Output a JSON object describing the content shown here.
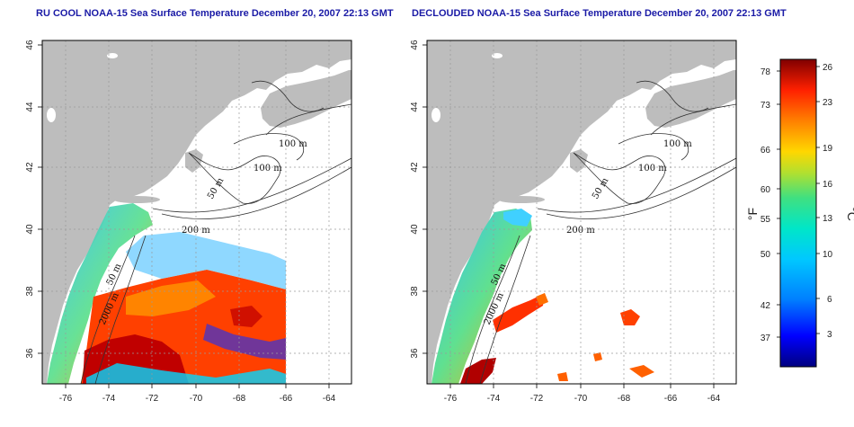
{
  "titles": {
    "left": "RU COOL NOAA-15 Sea Surface Temperature December 20, 2007 22:13 GMT",
    "right": "DECLOUDED NOAA-15 Sea Surface Temperature December 20, 2007 22:13 GMT"
  },
  "axes": {
    "lon_ticks": [
      "-76",
      "-74",
      "-72",
      "-70",
      "-68",
      "-66",
      "-64"
    ],
    "lat_ticks": [
      "46",
      "44",
      "42",
      "40",
      "38",
      "36"
    ]
  },
  "contour_labels": {
    "left": [
      "100 m",
      "100 m",
      "50 m",
      "200 m",
      "50 m",
      "2000 m"
    ],
    "right": [
      "100 m",
      "100 m",
      "50 m",
      "200 m",
      "50 m",
      "2000 m"
    ]
  },
  "colorbar": {
    "fahrenheit_ticks": [
      "78",
      "73",
      "66",
      "60",
      "55",
      "50",
      "42",
      "37"
    ],
    "celsius_ticks": [
      "26",
      "23",
      "19",
      "16",
      "13",
      "10",
      "6",
      "3"
    ],
    "fahrenheit_unit": "°F",
    "celsius_unit": "°C"
  },
  "colors": {
    "land": "#bdbdbd",
    "ocean": "#ffffff",
    "grid": "#9a9a9a",
    "title": "#1a1aa6",
    "scale": [
      "#000080",
      "#0000ff",
      "#0080ff",
      "#00c8ff",
      "#00e6c8",
      "#40e080",
      "#b0e030",
      "#ffd700",
      "#ff8000",
      "#ff2000",
      "#b00000",
      "#800000"
    ]
  }
}
